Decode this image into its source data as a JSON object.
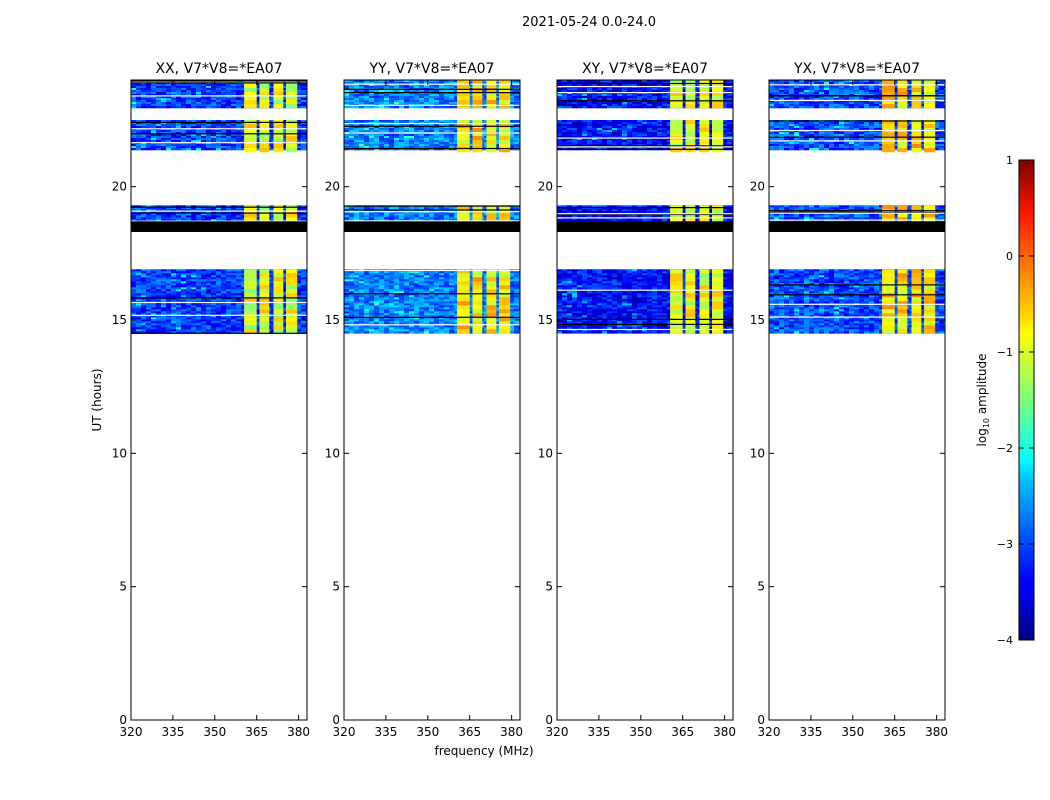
{
  "figure_title": "2021-05-24 0.0-24.0",
  "chart_data": {
    "type": "heatmap",
    "title": "2021-05-24 0.0-24.0",
    "xlabel": "frequency (MHz)",
    "ylabel": "UT (hours)",
    "xlim": [
      320,
      383
    ],
    "ylim": [
      0,
      24
    ],
    "xticks": [
      320,
      335,
      350,
      365,
      380
    ],
    "yticks": [
      0,
      5,
      10,
      15,
      20
    ],
    "panels": [
      {
        "title": "XX, V7*V8=*EA07",
        "noise_bias": 0.0
      },
      {
        "title": "YY, V7*V8=*EA07",
        "noise_bias": 0.35
      },
      {
        "title": "XY, V7*V8=*EA07",
        "noise_bias": -0.25
      },
      {
        "title": "YX, V7*V8=*EA07",
        "noise_bias": 0.1
      }
    ],
    "data_time_blocks_ut": [
      {
        "start": 23.0,
        "end": 24.0
      },
      {
        "start": 21.4,
        "end": 22.5
      },
      {
        "start": 18.7,
        "end": 19.3
      },
      {
        "start": 14.5,
        "end": 16.9
      }
    ],
    "blank_gaps_ut": [
      [
        22.5,
        23.0
      ],
      [
        19.3,
        21.4
      ],
      [
        16.9,
        18.3
      ],
      [
        0,
        14.5
      ]
    ],
    "flagged_black_band_ut": [
      18.3,
      18.7
    ],
    "bright_rfi_channels_mhz": [
      [
        360.5,
        365
      ],
      [
        366,
        369.5
      ],
      [
        371,
        374.5
      ],
      [
        375.5,
        379.5
      ]
    ],
    "colorbar": {
      "label": "log10 amplitude",
      "label_prefix": "log",
      "label_sub": "10",
      "label_suffix": " amplitude",
      "range": [
        -4,
        1
      ],
      "ticks": [
        "1",
        "0",
        "−1",
        "−2",
        "−3",
        "−4"
      ],
      "tick_values": [
        1,
        0,
        -1,
        -2,
        -3,
        -4
      ]
    }
  }
}
